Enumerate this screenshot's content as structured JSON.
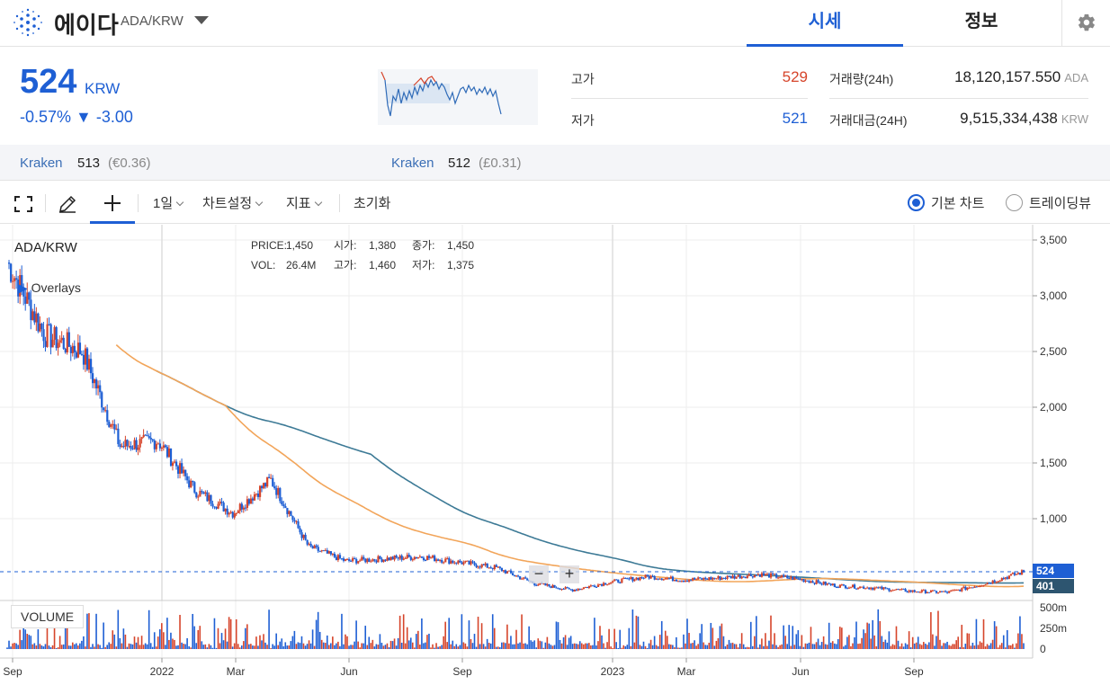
{
  "header": {
    "coin_name": "에이다",
    "pair": "ADA/KRW",
    "tabs": [
      {
        "label": "시세",
        "active": true
      },
      {
        "label": "정보",
        "active": false
      }
    ]
  },
  "price": {
    "current": "524",
    "unit": "KRW",
    "change": "-0.57% ▼ -3.00"
  },
  "stats": {
    "high_label": "고가",
    "high_value": "529",
    "low_label": "저가",
    "low_value": "521",
    "volume_label": "거래량(24h)",
    "volume_value": "18,120,157.550",
    "volume_unit": "ADA",
    "amount_label": "거래대금(24H)",
    "amount_value": "9,515,334,438",
    "amount_unit": "KRW"
  },
  "exchanges": [
    {
      "name": "Kraken",
      "price": "513",
      "fx": "(€0.36)"
    },
    {
      "name": "Kraken",
      "price": "512",
      "fx": "(£0.31)"
    }
  ],
  "toolbar": {
    "interval": "1일",
    "chart_settings": "차트설정",
    "indicators": "지표",
    "reset": "초기화",
    "radio_basic": "기본 차트",
    "radio_trading": "트레이딩뷰"
  },
  "chart": {
    "pair_label": "ADA/KRW",
    "overlays_label": "Overlays",
    "volume_label": "VOLUME",
    "legend": {
      "price_label": "PRICE:",
      "price": "1,450",
      "open_label": "시가:",
      "open": "1,380",
      "close_label": "종가:",
      "close": "1,450",
      "vol_label": "VOL:",
      "vol": "26.4M",
      "high_label": "고가:",
      "high": "1,460",
      "low_label": "저가:",
      "low": "1,375"
    },
    "y_ticks": [
      "3,500",
      "3,000",
      "2,500",
      "2,000",
      "1,500",
      "1,000"
    ],
    "vol_ticks": [
      "500m",
      "250m",
      "0"
    ],
    "x_ticks": [
      "Sep",
      "2022",
      "Mar",
      "Jun",
      "Sep",
      "2023",
      "Mar",
      "Jun",
      "Sep"
    ],
    "last_price_tag": "524",
    "ma_tag": "401",
    "colors": {
      "up": "#d6452b",
      "down": "#1e5fd4",
      "ma_short": "#f2a55a",
      "ma_long": "#3d7a96",
      "accent": "#1e5fd4"
    }
  },
  "chart_data": {
    "type": "line",
    "title": "ADA/KRW",
    "series": [
      {
        "name": "ADA/KRW",
        "x": [
          "2021-09",
          "2021-10",
          "2021-11",
          "2021-12",
          "2022-01",
          "2022-02",
          "2022-03",
          "2022-04",
          "2022-05",
          "2022-06",
          "2022-07",
          "2022-08",
          "2022-09",
          "2022-10",
          "2022-11",
          "2022-12",
          "2023-01",
          "2023-02",
          "2023-03",
          "2023-04",
          "2023-05",
          "2023-06",
          "2023-07",
          "2023-08",
          "2023-09",
          "2023-10",
          "2023-11",
          "2023-12"
        ],
        "values": [
          3300,
          2650,
          2500,
          1650,
          1700,
          1250,
          1050,
          1350,
          750,
          620,
          640,
          660,
          610,
          560,
          420,
          360,
          430,
          480,
          450,
          470,
          500,
          460,
          400,
          380,
          350,
          340,
          420,
          524
        ]
      }
    ],
    "ylim": [
      0,
      3600
    ],
    "y_ticks": [
      1000,
      1500,
      2000,
      2500,
      3000,
      3500
    ],
    "volume_ticks": [
      "0",
      "250m",
      "500m"
    ]
  }
}
